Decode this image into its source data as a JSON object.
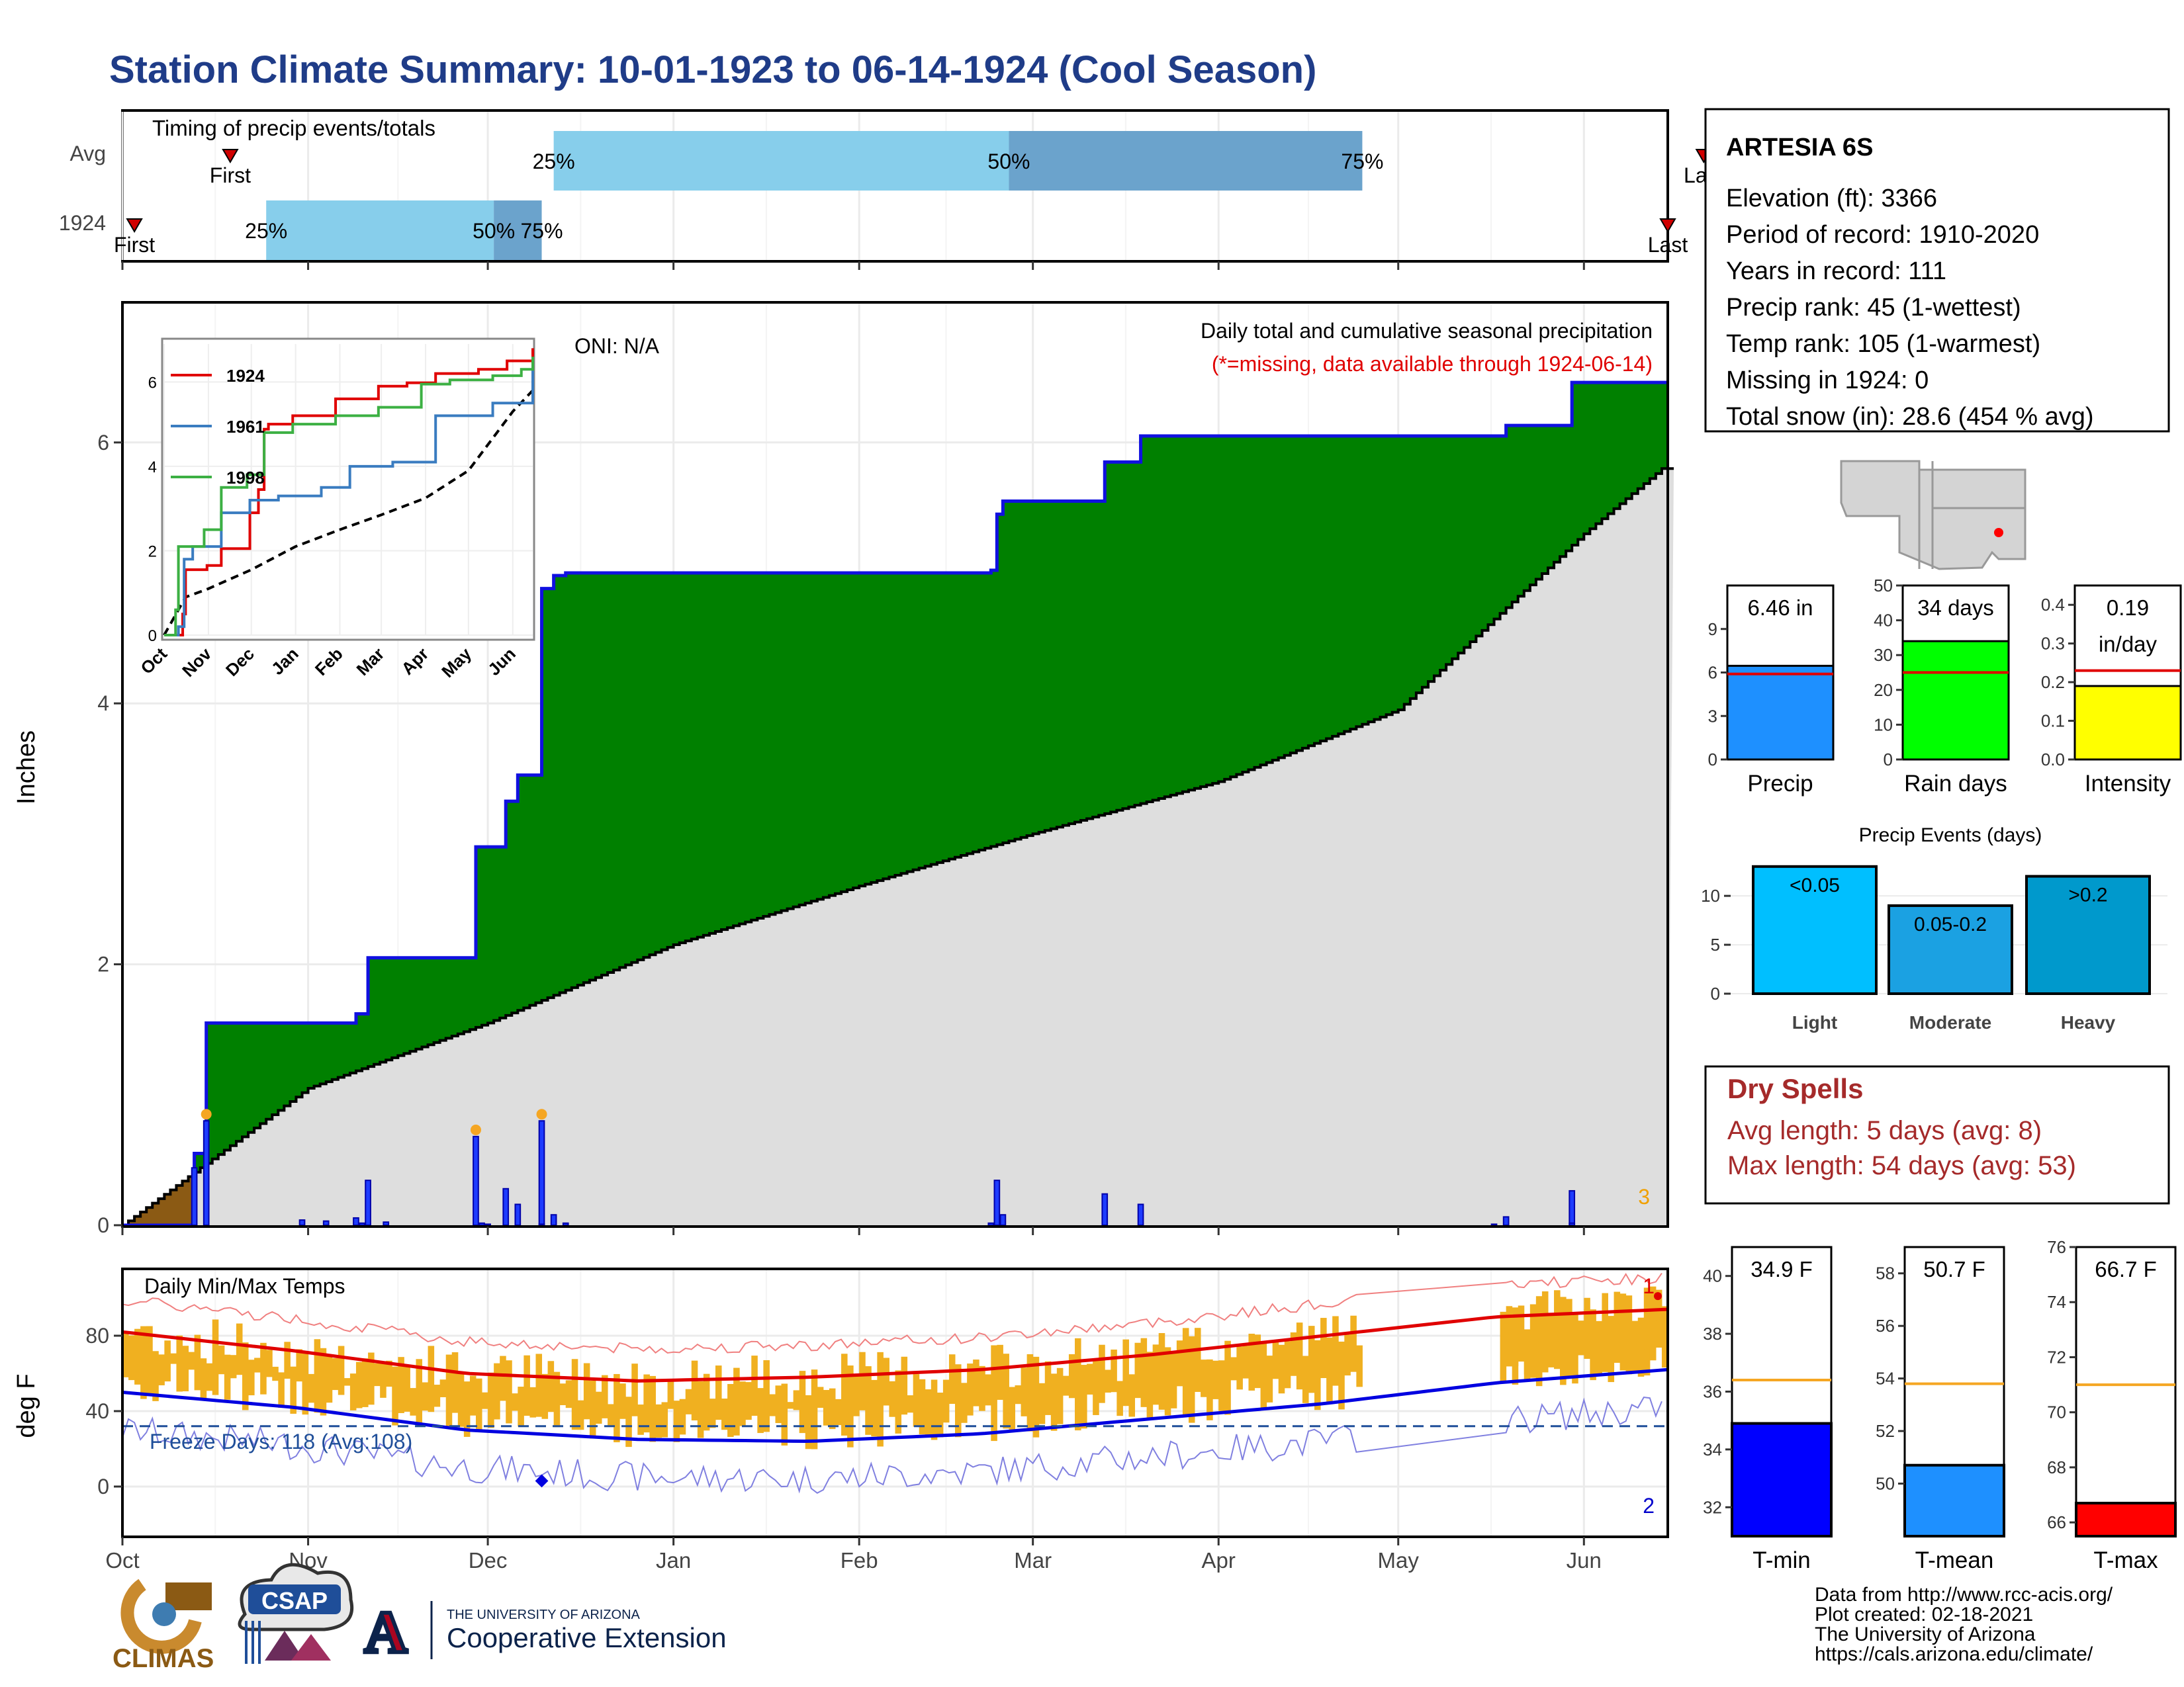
{
  "title": "Station Climate Summary: 10-01-1923 to 06-14-1924 (Cool Season)",
  "colors": {
    "title": "#1F3C88",
    "green": "#008000",
    "blue_line": "#1010E0",
    "gray_fill": "#DEDEDE",
    "brown": "#8B5A14",
    "light_blue": "#87CEEB",
    "mid_blue": "#6BA3CC",
    "orange": "#F0B020",
    "red": "#E00000",
    "dry_red": "#A52A2A"
  },
  "timing": {
    "label": "Timing of precip events/totals",
    "rows": [
      {
        "name": "Avg",
        "first": "First",
        "last": "Last",
        "p25": "25%",
        "p50": "50%",
        "p75": "75%",
        "first_date": "1923-10-19",
        "last_date": "1924-06-21",
        "p25_date": "1923-12-12",
        "p50_date": "1924-02-26",
        "p75_date": "1924-04-25"
      },
      {
        "name": "1924",
        "first": "First",
        "last": "Last",
        "p25": "25%",
        "p50": "50%",
        "p75": "75%",
        "first_date": "1923-10-03",
        "last_date": "1924-06-15",
        "p25_date": "1923-10-25",
        "p50_date": "1923-12-02",
        "p75_date": "1923-12-10"
      }
    ]
  },
  "precip_panel": {
    "ylabel": "Inches",
    "oni": "ONI: N/A",
    "caption1": "Daily total and cumulative seasonal precipitation",
    "caption2": "(*=missing, data available through 1924-06-14)",
    "count_label": "3",
    "yticks": [
      "0",
      "2",
      "4",
      "6"
    ]
  },
  "inset": {
    "months": [
      "Oct",
      "Nov",
      "Dec",
      "Jan",
      "Feb",
      "Mar",
      "Apr",
      "May",
      "Jun"
    ],
    "yticks": [
      "0",
      "2",
      "4",
      "6"
    ],
    "legend": [
      {
        "name": "1924",
        "color": "#E00000"
      },
      {
        "name": "1961",
        "color": "#3A7CC0"
      },
      {
        "name": "1998",
        "color": "#3CB043"
      }
    ]
  },
  "temp_panel": {
    "ylabel": "deg F",
    "label": "Daily Min/Max Temps",
    "freeze_label": "Freeze Days: 118 (Avg:108)",
    "yticks": [
      "0",
      "40",
      "80"
    ],
    "marker_top": "1",
    "marker_bottom": "2"
  },
  "x_months": [
    "Oct",
    "Nov",
    "Dec",
    "Jan",
    "Feb",
    "Mar",
    "Apr",
    "May",
    "Jun"
  ],
  "station": {
    "name": "ARTESIA 6S",
    "lines": [
      "Elevation (ft): 3366",
      "Period of record: 1910-2020",
      "Years in record: 111",
      "Precip rank: 45 (1-wettest)",
      "Temp rank: 105 (1-warmest)",
      "Missing in 1924: 0",
      "Total snow (in): 28.6 (454 % avg)"
    ]
  },
  "mini_bars": [
    {
      "label": "Precip",
      "value_text": "6.46 in",
      "value": 6.46,
      "avg": 5.9,
      "ymax": 12,
      "ticks": [
        "0",
        "3",
        "6",
        "9"
      ],
      "tickvals": [
        0,
        3,
        6,
        9
      ],
      "color": "#1E90FF"
    },
    {
      "label": "Rain days",
      "value_text": "34 days",
      "value": 34,
      "avg": 25,
      "ymax": 50,
      "ticks": [
        "0",
        "10",
        "20",
        "30",
        "40",
        "50"
      ],
      "tickvals": [
        0,
        10,
        20,
        30,
        40,
        50
      ],
      "color": "#00FF00"
    },
    {
      "label": "Intensity",
      "value_text": "0.19",
      "value_text2": "in/day",
      "value": 0.19,
      "avg": 0.23,
      "ymax": 0.45,
      "ticks": [
        "0.0",
        "0.1",
        "0.2",
        "0.3",
        "0.4"
      ],
      "tickvals": [
        0,
        0.1,
        0.2,
        0.3,
        0.4
      ],
      "color": "#FFFF00"
    }
  ],
  "events": {
    "title": "Precip Events (days)",
    "ticks": [
      "0",
      "5",
      "10"
    ],
    "bars": [
      {
        "label": "Light",
        "inner": "<0.05",
        "value": 13,
        "color": "#00BFFF"
      },
      {
        "label": "Moderate",
        "inner": "0.05-0.2",
        "value": 9,
        "color": "#1BA1E2"
      },
      {
        "label": "Heavy",
        "inner": ">0.2",
        "value": 12,
        "color": "#0099CC"
      }
    ]
  },
  "dry_spells": {
    "title": "Dry Spells",
    "avg": "Avg length: 5 days (avg: 8)",
    "max": "Max length: 54 days (avg: 53)"
  },
  "temp_bars": [
    {
      "label": "T-min",
      "value_text": "34.9 F",
      "value": 34.9,
      "avg": 36.4,
      "ymin": 31,
      "ymax": 41,
      "ticks": [
        "32",
        "34",
        "36",
        "38",
        "40"
      ],
      "tickvals": [
        32,
        34,
        36,
        38,
        40
      ],
      "color": "#0000FF"
    },
    {
      "label": "T-mean",
      "value_text": "50.7 F",
      "value": 50.7,
      "avg": 53.8,
      "ymin": 48,
      "ymax": 59,
      "ticks": [
        "50",
        "52",
        "54",
        "56",
        "58"
      ],
      "tickvals": [
        50,
        52,
        54,
        56,
        58
      ],
      "color": "#1E90FF"
    },
    {
      "label": "T-max",
      "value_text": "66.7 F",
      "value": 66.7,
      "avg": 71,
      "ymin": 65.5,
      "ymax": 76,
      "ticks": [
        "66",
        "68",
        "70",
        "72",
        "74",
        "76"
      ],
      "tickvals": [
        66,
        68,
        70,
        72,
        74,
        76
      ],
      "color": "#FF0000"
    }
  ],
  "footer": {
    "lines": [
      "Data from http://www.rcc-acis.org/",
      "Plot created: 02-18-2021",
      "The University of Arizona",
      "https://cals.arizona.edu/climate/"
    ],
    "logo1": "CLIMAS",
    "logo2": "CSAP",
    "logo3a": "THE UNIVERSITY OF ARIZONA",
    "logo3b": "Cooperative Extension"
  },
  "chart_data": {
    "type": "area",
    "title": "Daily total and cumulative seasonal precipitation",
    "xlabel": "",
    "ylabel": "Inches",
    "ylim": [
      0,
      7.3
    ],
    "x_range": [
      "1923-10-01",
      "1924-06-14"
    ],
    "series": [
      {
        "name": "Cumulative 1924",
        "x": [
          "1923-10-01",
          "1923-10-13",
          "1923-10-15",
          "1923-11-09",
          "1923-11-11",
          "1923-11-27",
          "1923-11-29",
          "1923-12-04",
          "1923-12-06",
          "1923-12-10",
          "1923-12-12",
          "1923-12-14",
          "1924-02-23",
          "1924-02-24",
          "1924-02-25",
          "1924-03-13",
          "1924-03-19",
          "1924-04-25",
          "1924-05-19",
          "1924-05-30",
          "1924-06-14"
        ],
        "values": [
          0,
          0.55,
          1.55,
          1.62,
          2.05,
          2.05,
          2.9,
          3.25,
          3.45,
          4.88,
          4.98,
          5.0,
          5.02,
          5.45,
          5.55,
          5.85,
          6.05,
          6.05,
          6.13,
          6.46,
          6.46
        ]
      },
      {
        "name": "Average cumulative",
        "x": [
          "1923-10-01",
          "1923-11-01",
          "1923-12-01",
          "1924-01-01",
          "1924-02-01",
          "1924-03-01",
          "1924-04-01",
          "1924-05-01",
          "1924-06-01",
          "1924-06-14"
        ],
        "values": [
          0,
          1.05,
          1.55,
          2.15,
          2.6,
          3.0,
          3.4,
          3.95,
          5.3,
          5.8
        ]
      }
    ]
  }
}
